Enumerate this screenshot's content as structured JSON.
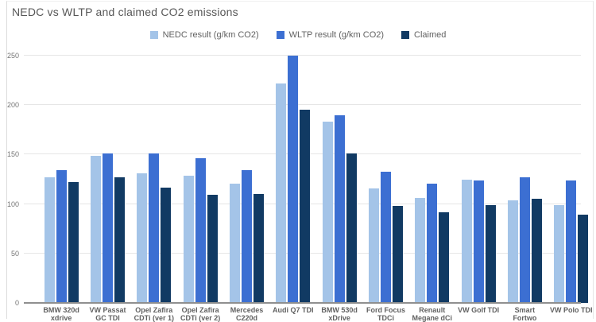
{
  "title": "NEDC vs WLTP and claimed CO2 emissions",
  "colors": {
    "background": "#ffffff",
    "gridline": "#e6e6e6",
    "axis_line": "#8f8f8f",
    "title_text": "#575757",
    "tick_text": "#757575",
    "category_text": "#616161",
    "frame_border": "#dcdcdc",
    "nedc": "#a4c4e8",
    "wltp": "#3c6fd2",
    "claimed": "#113a63"
  },
  "chart_data": {
    "type": "bar",
    "title": "NEDC vs WLTP and claimed CO2 emissions",
    "xlabel": "",
    "ylabel": "",
    "unit": "g/km CO2",
    "ylim": [
      0,
      250
    ],
    "yticks": [
      0,
      50,
      100,
      150,
      200,
      250
    ],
    "grid": true,
    "legend_position": "top-center",
    "categories": [
      "BMW 320d xdrive",
      "VW Passat GC TDI",
      "Opel Zafira CDTi (ver 1)",
      "Opel Zafira CDTi (ver 2)",
      "Mercedes C220d",
      "Audi Q7 TDI",
      "BMW 530d xDrive",
      "Ford Focus TDCi",
      "Renault Megane dCi",
      "VW Golf TDI",
      "Smart Fortwo",
      "VW Polo TDI"
    ],
    "category_lines": [
      [
        "BMW 320d",
        "xdrive"
      ],
      [
        "VW Passat",
        "GC TDI"
      ],
      [
        "Opel Zafira",
        "CDTi (ver 1)"
      ],
      [
        "Opel Zafira",
        "CDTi (ver 2)"
      ],
      [
        "Mercedes",
        "C220d"
      ],
      [
        "Audi Q7 TDI"
      ],
      [
        "BMW 530d",
        "xDrive"
      ],
      [
        "Ford Focus",
        "TDCi"
      ],
      [
        "Renault",
        "Megane dCi"
      ],
      [
        "VW Golf TDI"
      ],
      [
        "Smart",
        "Fortwo"
      ],
      [
        "VW Polo TDI"
      ]
    ],
    "series": [
      {
        "key": "nedc",
        "name": "NEDC result (g/km CO2)",
        "color": "#a4c4e8",
        "values": [
          127,
          149,
          131,
          129,
          121,
          222,
          183,
          116,
          106,
          125,
          104,
          99
        ]
      },
      {
        "key": "wltp",
        "name": "WLTP result (g/km CO2)",
        "color": "#3c6fd2",
        "values": [
          134,
          151,
          151,
          146,
          134,
          250,
          190,
          133,
          121,
          124,
          127,
          124
        ]
      },
      {
        "key": "claimed",
        "name": "Claimed",
        "color": "#113a63",
        "values": [
          122,
          127,
          117,
          109,
          110,
          195,
          151,
          98,
          92,
          99,
          105,
          89
        ]
      }
    ]
  }
}
